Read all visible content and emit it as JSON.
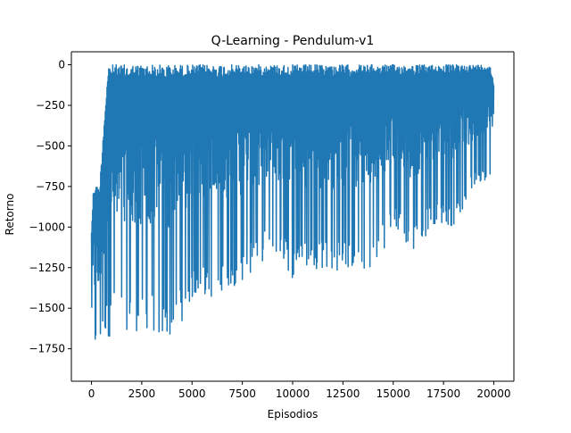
{
  "chart_data": {
    "type": "line",
    "title": "Q-Learning - Pendulum-v1",
    "xlabel": "Episodios",
    "ylabel": "Retorno",
    "xlim": [
      -1000,
      21000
    ],
    "ylim": [
      -1950,
      80
    ],
    "xticks": [
      0,
      2500,
      5000,
      7500,
      10000,
      12500,
      15000,
      17500,
      20000
    ],
    "xtick_labels": [
      "0",
      "2500",
      "5000",
      "7500",
      "10000",
      "12500",
      "15000",
      "17500",
      "20000"
    ],
    "yticks": [
      0,
      -250,
      -500,
      -750,
      -1000,
      -1250,
      -1500,
      -1750
    ],
    "ytick_labels": [
      "0",
      "−250",
      "−500",
      "−750",
      "−1000",
      "−1250",
      "−1500",
      "−1750"
    ],
    "grid": false,
    "legend": false,
    "color": "#1f77b4",
    "series": [
      {
        "x": [
          0,
          100,
          200,
          400,
          600,
          750,
          850,
          1000,
          1500,
          2000,
          2500,
          3000,
          3500,
          4000,
          4500,
          5000,
          5500,
          6000,
          6500,
          7000,
          7500,
          8000,
          9000,
          10000,
          11000,
          12000,
          13000,
          14000,
          15000,
          16000,
          17000,
          18000,
          19000,
          19800,
          20000
        ],
        "upper": [
          -1000,
          -750,
          -740,
          -760,
          -380,
          -130,
          0,
          0,
          0,
          0,
          0,
          0,
          0,
          0,
          0,
          0,
          0,
          0,
          0,
          0,
          0,
          0,
          0,
          0,
          0,
          0,
          0,
          0,
          0,
          0,
          0,
          0,
          0,
          0,
          -100
        ],
        "lower": [
          -1860,
          -1800,
          -1790,
          -1760,
          -1710,
          -1680,
          -1690,
          -1650,
          -1630,
          -1640,
          -1650,
          -1640,
          -1750,
          -1680,
          -1580,
          -1470,
          -1440,
          -1450,
          -1390,
          -1370,
          -1340,
          -1280,
          -1150,
          -1320,
          -1250,
          -1280,
          -1270,
          -1280,
          -1010,
          -1180,
          -980,
          -1000,
          -780,
          -680,
          -660
        ]
      }
    ]
  }
}
